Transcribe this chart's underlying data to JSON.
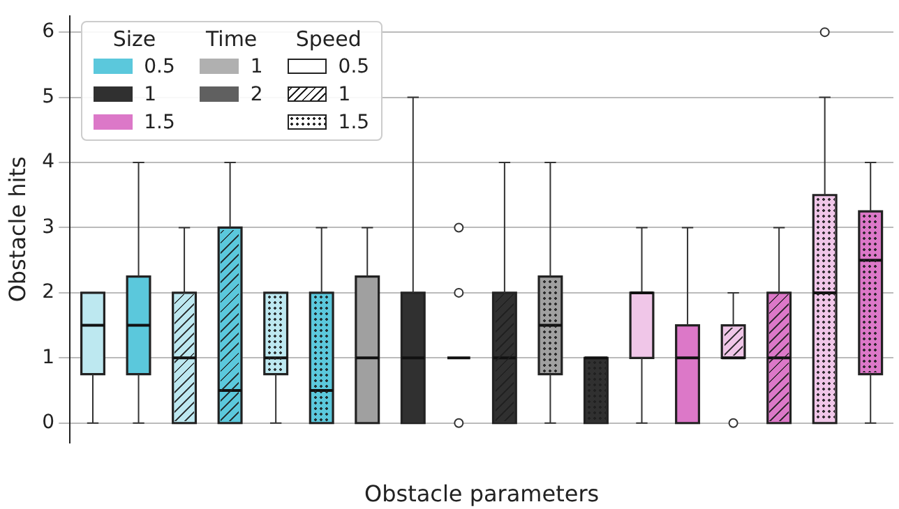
{
  "chart_data": {
    "type": "box",
    "xlabel": "Obstacle parameters",
    "ylabel": "Obstacle hits",
    "categories": [
      null,
      null,
      null,
      null,
      null,
      null,
      null,
      null,
      null,
      null,
      null,
      null,
      null,
      null,
      null,
      null,
      null,
      null
    ],
    "boxes": [
      {
        "low": 0,
        "q1": 0.75,
        "median": 1.5,
        "q3": 2,
        "high": 2
      },
      {
        "low": 0,
        "q1": 0.75,
        "median": 1.5,
        "q3": 2.25,
        "high": 4
      },
      {
        "low": 0,
        "q1": 0,
        "median": 1,
        "q3": 2,
        "high": 3
      },
      {
        "low": 0,
        "q1": 0,
        "median": 0.5,
        "q3": 3,
        "high": 4
      },
      {
        "low": 0,
        "q1": 0.75,
        "median": 1,
        "q3": 2,
        "high": 2
      },
      {
        "low": 0,
        "q1": 0,
        "median": 0.5,
        "q3": 2,
        "high": 3
      },
      {
        "low": 0,
        "q1": 0,
        "median": 1,
        "q3": 2.25,
        "high": 3
      },
      {
        "low": 0,
        "q1": 0,
        "median": 1,
        "q3": 2,
        "high": 5
      },
      {
        "low": 1,
        "q1": 1,
        "median": 1,
        "q3": 1,
        "high": 1,
        "outliers": [
          0,
          2,
          3
        ]
      },
      {
        "low": 0,
        "q1": 0,
        "median": 1,
        "q3": 2,
        "high": 4
      },
      {
        "low": 0,
        "q1": 0.75,
        "median": 1.5,
        "q3": 2.25,
        "high": 4
      },
      {
        "low": 0,
        "q1": 0,
        "median": 1,
        "q3": 1,
        "high": 1
      },
      {
        "low": 0,
        "q1": 1,
        "median": 2,
        "q3": 2,
        "high": 3
      },
      {
        "low": 0,
        "q1": 0,
        "median": 1,
        "q3": 1.5,
        "high": 3
      },
      {
        "low": 1,
        "q1": 1,
        "median": 1,
        "q3": 1.5,
        "high": 2,
        "outliers": [
          0
        ]
      },
      {
        "low": 0,
        "q1": 0,
        "median": 1,
        "q3": 2,
        "high": 3
      },
      {
        "low": 0,
        "q1": 0,
        "median": 2,
        "q3": 3.5,
        "high": 5,
        "outliers": [
          6
        ]
      },
      {
        "low": 0,
        "q1": 0.75,
        "median": 2.5,
        "q3": 3.25,
        "high": 4
      }
    ],
    "colors": [
      "#bde8f0",
      "#5bc8dc",
      "#bde8f0",
      "#5bc8dc",
      "#bde8f0",
      "#5bc8dc",
      "#a0a0a0",
      "#303030",
      "#111111",
      "#303030",
      "#a0a0a0",
      "#303030",
      "#f0c6e8",
      "#dc78c8",
      "#f0c6e8",
      "#dc78c8",
      "#f0c6e8",
      "#dc78c8"
    ],
    "ylim": [
      -0.3,
      6.25
    ],
    "yticks": [
      0,
      1,
      2,
      3,
      4,
      5,
      6
    ],
    "grid": "y",
    "annotations": [
      "Size",
      "0.5",
      "1",
      "1.5",
      "Time",
      "1",
      "2",
      "Speed",
      "0.5",
      "1",
      "1.5"
    ]
  }
}
